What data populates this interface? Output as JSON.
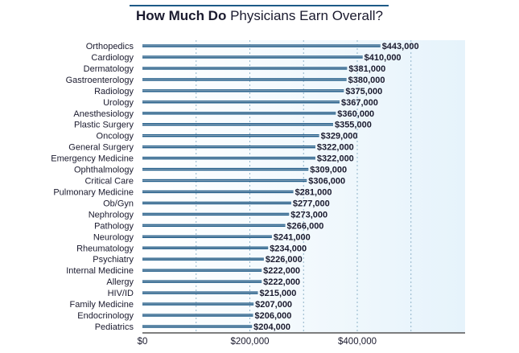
{
  "title": {
    "bold": "How Much Do",
    "rest": "Physicians Earn Overall?"
  },
  "colors": {
    "bar": "#1d5a87",
    "bar_highlight": "#9fb3c4",
    "grid": "#8fb3c9",
    "axis": "#555555",
    "label": "#1a1a2e",
    "panel_from": "#ffffff",
    "panel_to": "#e6f3fb"
  },
  "chart_data": {
    "type": "bar",
    "orientation": "horizontal",
    "title": "How Much Do Physicians Earn Overall?",
    "xlabel": "",
    "ylabel": "",
    "xlim": [
      0,
      600000
    ],
    "grid": true,
    "legend": "none",
    "xticks": [
      {
        "value": 0,
        "label": "$0"
      },
      {
        "value": 200000,
        "label": "$200,000"
      },
      {
        "value": 400000,
        "label": "$400,000"
      }
    ],
    "categories": [
      "Orthopedics",
      "Cardiology",
      "Dermatology",
      "Gastroenterology",
      "Radiology",
      "Urology",
      "Anesthesiology",
      "Plastic Surgery",
      "Oncology",
      "General Surgery",
      "Emergency Medicine",
      "Ophthalmology",
      "Critical Care",
      "Pulmonary Medicine",
      "Ob/Gyn",
      "Nephrology",
      "Pathology",
      "Neurology",
      "Rheumatology",
      "Psychiatry",
      "Internal Medicine",
      "Allergy",
      "HIV/ID",
      "Family Medicine",
      "Endocrinology",
      "Pediatrics"
    ],
    "values": [
      443000,
      410000,
      381000,
      380000,
      375000,
      367000,
      360000,
      355000,
      329000,
      322000,
      322000,
      309000,
      306000,
      281000,
      277000,
      273000,
      266000,
      241000,
      234000,
      226000,
      222000,
      222000,
      215000,
      207000,
      206000,
      204000
    ],
    "value_labels": [
      "$443,000",
      "$410,000",
      "$381,000",
      "$380,000",
      "$375,000",
      "$367,000",
      "$360,000",
      "$355,000",
      "$329,000",
      "$322,000",
      "$322,000",
      "$309,000",
      "$306,000",
      "$281,000",
      "$277,000",
      "$273,000",
      "$266,000",
      "$241,000",
      "$234,000",
      "$226,000",
      "$222,000",
      "$222,000",
      "$215,000",
      "$207,000",
      "$206,000",
      "$204,000"
    ]
  }
}
